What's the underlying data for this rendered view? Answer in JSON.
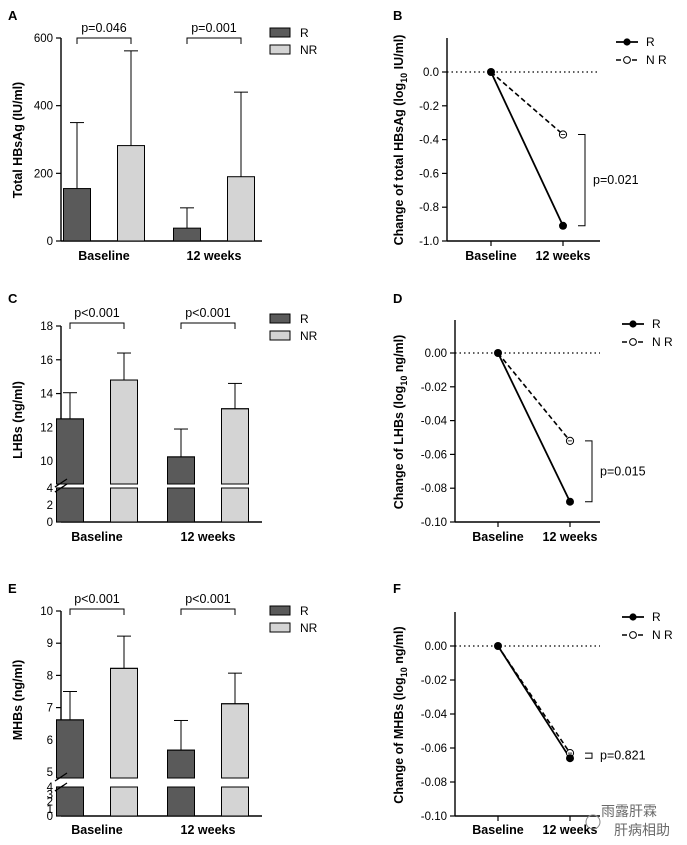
{
  "chart_data": [
    {
      "panel": "A",
      "type": "bar",
      "ylabel": "Total HBsAg (IU/ml)",
      "categories": [
        "Baseline",
        "12 weeks"
      ],
      "ylim": [
        0,
        600
      ],
      "yticks": [
        "0",
        "200",
        "400",
        "600"
      ],
      "series": [
        {
          "name": "R",
          "values": [
            155,
            38
          ],
          "error": [
            195,
            60
          ]
        },
        {
          "name": "NR",
          "values": [
            282,
            190
          ],
          "error": [
            280,
            250
          ]
        }
      ],
      "annotations": [
        "p=0.046",
        "p=0.001"
      ],
      "legend": "top-right"
    },
    {
      "panel": "B",
      "type": "line",
      "ylabel_main": "Change of total HBsAg (log",
      "ylabel_sub": "10",
      "ylabel_end": " IU/ml)",
      "categories": [
        "Baseline",
        "12 weeks"
      ],
      "ylim": [
        -1.0,
        0.0
      ],
      "yticks": [
        "0.0",
        "-0.2",
        "-0.4",
        "-0.6",
        "-0.8",
        "-1.0"
      ],
      "series": [
        {
          "name": "R",
          "values": [
            0.0,
            -0.91
          ]
        },
        {
          "name": "N R",
          "values": [
            0.0,
            -0.37
          ]
        }
      ],
      "annotation": "p=0.021",
      "legend": "top-right"
    },
    {
      "panel": "C",
      "type": "bar",
      "ylabel": "LHBs (ng/ml)",
      "categories": [
        "Baseline",
        "12 weeks"
      ],
      "ylim_upper": [
        9,
        18
      ],
      "ylim_lower": [
        0,
        4
      ],
      "yticks_upper": [
        "10",
        "12",
        "14",
        "16",
        "18"
      ],
      "yticks_lower": [
        "0",
        "2",
        "4"
      ],
      "series": [
        {
          "name": "R",
          "values": [
            12.5,
            10.25
          ],
          "error": [
            1.55,
            1.65
          ]
        },
        {
          "name": "NR",
          "values": [
            14.8,
            13.1
          ],
          "error": [
            1.6,
            1.5
          ]
        }
      ],
      "annotations": [
        "p<0.001",
        "p<0.001"
      ],
      "legend": "top-right"
    },
    {
      "panel": "D",
      "type": "line",
      "ylabel_main": "Change of LHBs (log",
      "ylabel_sub": "10",
      "ylabel_end": " ng/ml)",
      "categories": [
        "Baseline",
        "12 weeks"
      ],
      "ylim": [
        -0.1,
        0.0
      ],
      "yticks": [
        "0.00",
        "-0.02",
        "-0.04",
        "-0.06",
        "-0.08",
        "-0.10"
      ],
      "series": [
        {
          "name": "R",
          "values": [
            0.0,
            -0.088
          ]
        },
        {
          "name": "N R",
          "values": [
            0.0,
            -0.052
          ]
        }
      ],
      "annotation": "p=0.015",
      "legend": "top-right"
    },
    {
      "panel": "E",
      "type": "bar",
      "ylabel": "MHBs (ng/ml)",
      "categories": [
        "Baseline",
        "12 weeks"
      ],
      "ylim_upper": [
        5,
        10
      ],
      "ylim_lower": [
        0,
        4
      ],
      "yticks_upper": [
        "5",
        "6",
        "7",
        "8",
        "9",
        "10"
      ],
      "yticks_lower": [
        "0",
        "1",
        "2",
        "3",
        "4"
      ],
      "series": [
        {
          "name": "R",
          "values": [
            6.62,
            5.68
          ],
          "error": [
            0.88,
            0.92
          ]
        },
        {
          "name": "NR",
          "values": [
            8.22,
            7.12
          ],
          "error": [
            1.0,
            0.95
          ]
        }
      ],
      "annotations": [
        "p<0.001",
        "p<0.001"
      ],
      "legend": "top-right"
    },
    {
      "panel": "F",
      "type": "line",
      "ylabel_main": "Change of MHBs (log",
      "ylabel_sub": "10",
      "ylabel_end": " ng/ml)",
      "categories": [
        "Baseline",
        "12 weeks"
      ],
      "ylim": [
        -0.1,
        0.0
      ],
      "yticks": [
        "0.00",
        "-0.02",
        "-0.04",
        "-0.06",
        "-0.08",
        "-0.10"
      ],
      "series": [
        {
          "name": "R",
          "values": [
            0.0,
            -0.066
          ]
        },
        {
          "name": "N R",
          "values": [
            0.0,
            -0.063
          ]
        }
      ],
      "annotation": "p=0.821",
      "legend": "top-right"
    }
  ],
  "watermark": {
    "line1": "雨露肝霖",
    "line2": "肝病相助"
  }
}
